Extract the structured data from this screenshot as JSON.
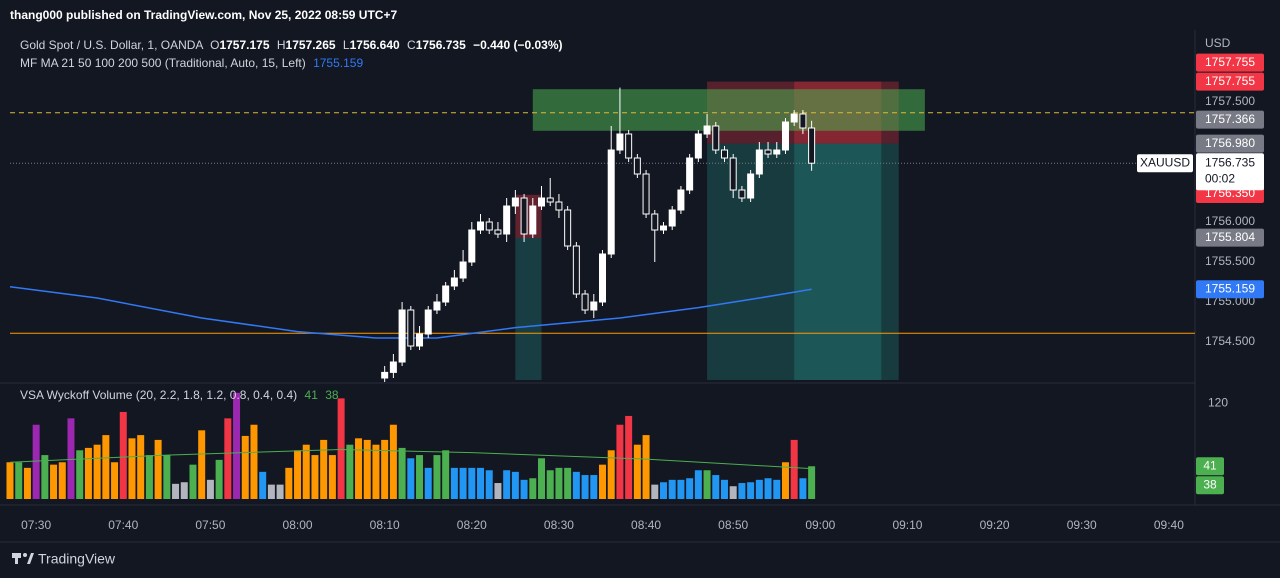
{
  "header": {
    "title": "thang000 published on TradingView.com, Nov 25, 2022 08:59 UTC+7"
  },
  "footer": {
    "brand": "TradingView"
  },
  "chart_data": [
    {
      "type": "candlestick",
      "title": "Gold Spot / U.S. Dollar, 1, OANDA",
      "legend": {
        "o_label": "O",
        "o": "1757.175",
        "h_label": "H",
        "h": "1757.265",
        "l_label": "L",
        "l": "1756.640",
        "c_label": "C",
        "c": "1756.735",
        "change": "−0.440 (−0.03%)"
      },
      "y_unit": "USD",
      "symbol_tag": "XAUUSD",
      "countdown": "00:02",
      "up_color": "#ffffff",
      "down_color": "#131722",
      "wick_color": "#ffffff",
      "ylim": [
        1754.025,
        1758.3375
      ],
      "yticks": [
        {
          "value": 1757.5,
          "label": "1757.500"
        },
        {
          "value": 1756,
          "label": "1756.000"
        },
        {
          "value": 1755.5,
          "label": "1755.500"
        },
        {
          "value": 1755,
          "label": "1755.000"
        },
        {
          "value": 1754.5,
          "label": "1754.500"
        }
      ],
      "x": [
        "08:10",
        "08:11",
        "08:12",
        "08:13",
        "08:14",
        "08:15",
        "08:16",
        "08:17",
        "08:18",
        "08:19",
        "08:20",
        "08:21",
        "08:22",
        "08:23",
        "08:24",
        "08:25",
        "08:26",
        "08:27",
        "08:28",
        "08:29",
        "08:30",
        "08:31",
        "08:32",
        "08:33",
        "08:34",
        "08:35",
        "08:36",
        "08:37",
        "08:38",
        "08:39",
        "08:40",
        "08:41",
        "08:42",
        "08:43",
        "08:44",
        "08:45",
        "08:46",
        "08:47",
        "08:48",
        "08:49",
        "08:50",
        "08:51",
        "08:52",
        "08:53",
        "08:54",
        "08:55",
        "08:56",
        "08:57",
        "08:58",
        "08:59"
      ],
      "open": [
        1754.05,
        1754.12,
        1754.25,
        1754.9,
        1754.45,
        1754.6,
        1754.9,
        1755.0,
        1755.2,
        1755.3,
        1755.5,
        1755.9,
        1756.0,
        1755.9,
        1755.85,
        1756.2,
        1756.3,
        1755.85,
        1756.2,
        1756.3,
        1756.25,
        1756.15,
        1755.7,
        1755.1,
        1754.9,
        1755.0,
        1755.6,
        1756.9,
        1757.1,
        1756.8,
        1756.6,
        1756.1,
        1755.9,
        1755.95,
        1756.15,
        1756.4,
        1756.8,
        1757.1,
        1757.2,
        1756.9,
        1756.8,
        1756.4,
        1756.3,
        1756.6,
        1756.9,
        1756.85,
        1756.9,
        1757.25,
        1757.35,
        1757.175
      ],
      "high": [
        1754.2,
        1754.35,
        1755.0,
        1754.95,
        1754.7,
        1754.95,
        1755.1,
        1755.25,
        1755.4,
        1755.65,
        1756.0,
        1756.1,
        1756.05,
        1756.0,
        1756.3,
        1756.4,
        1756.35,
        1756.3,
        1756.45,
        1756.55,
        1756.35,
        1756.2,
        1755.75,
        1755.15,
        1755.1,
        1755.65,
        1757.2,
        1757.68,
        1757.15,
        1756.85,
        1756.65,
        1756.15,
        1756.0,
        1756.2,
        1756.45,
        1756.85,
        1757.15,
        1757.35,
        1757.25,
        1756.95,
        1756.85,
        1756.45,
        1756.65,
        1757.0,
        1757.0,
        1757.0,
        1757.3,
        1757.4,
        1757.4,
        1757.265
      ],
      "low": [
        1754.0,
        1754.05,
        1754.2,
        1754.4,
        1754.4,
        1754.55,
        1754.85,
        1754.95,
        1755.15,
        1755.25,
        1755.45,
        1755.85,
        1755.85,
        1755.8,
        1755.75,
        1756.1,
        1755.75,
        1755.8,
        1756.15,
        1756.2,
        1756.05,
        1755.65,
        1755.05,
        1754.85,
        1754.8,
        1754.95,
        1755.55,
        1756.85,
        1756.75,
        1756.55,
        1756.05,
        1755.5,
        1755.85,
        1755.9,
        1756.1,
        1756.35,
        1756.75,
        1757.05,
        1756.85,
        1756.75,
        1756.3,
        1756.25,
        1756.25,
        1756.55,
        1756.8,
        1756.8,
        1756.85,
        1757.2,
        1757.1,
        1756.64
      ],
      "close": [
        1754.12,
        1754.25,
        1754.9,
        1754.45,
        1754.6,
        1754.9,
        1755.0,
        1755.2,
        1755.3,
        1755.5,
        1755.9,
        1756.0,
        1755.9,
        1755.85,
        1756.2,
        1756.3,
        1755.85,
        1756.2,
        1756.3,
        1756.25,
        1756.15,
        1755.7,
        1755.1,
        1754.9,
        1755.0,
        1755.6,
        1756.9,
        1757.1,
        1756.8,
        1756.6,
        1756.1,
        1755.9,
        1755.95,
        1756.15,
        1756.4,
        1756.8,
        1757.1,
        1757.2,
        1756.9,
        1756.8,
        1756.4,
        1756.3,
        1756.6,
        1756.9,
        1756.85,
        1756.9,
        1757.25,
        1757.35,
        1757.175,
        1756.735
      ],
      "ma": {
        "name": "MF MA 21 50 100 200 500 (Traditional, Auto, 15, Left)",
        "color": "#3179f5",
        "x": [
          "07:27",
          "07:37",
          "07:49",
          "08:00",
          "08:09",
          "08:16",
          "08:25",
          "08:37",
          "08:46",
          "08:53",
          "08:59"
        ],
        "values": [
          1755.19,
          1755.05,
          1754.8,
          1754.63,
          1754.55,
          1754.55,
          1754.68,
          1754.8,
          1754.93,
          1755.05,
          1755.159
        ]
      },
      "hlines": [
        {
          "value": 1757.366,
          "color": "#e0b83a",
          "style": "dashed"
        },
        {
          "value": 1756.735,
          "color": "#787b86",
          "style": "dotted"
        },
        {
          "value": 1754.61,
          "color": "#ff9800",
          "style": "solid"
        }
      ],
      "price_labels": [
        {
          "value": 1757.755,
          "label": "1757.755",
          "color": "#f23645"
        },
        {
          "value": 1757.755,
          "label": "1757.755",
          "color": "#f23645"
        },
        {
          "value": 1757.366,
          "label": "1757.366",
          "color": "#787b86"
        },
        {
          "value": 1756.98,
          "label": "1756.980",
          "color": "#787b86"
        },
        {
          "value": 1756.35,
          "label": "1756.350",
          "color": "#f23645"
        },
        {
          "value": 1755.804,
          "label": "1755.804",
          "color": "#787b86"
        }
      ],
      "shapes": [
        {
          "x1": "08:25",
          "x2": "08:28",
          "top": 1756.34,
          "bottom": 1755.8,
          "color": "rgba(242,54,69,0.35)"
        },
        {
          "x1": "08:25",
          "x2": "08:28",
          "top": 1755.8,
          "bottom": 1754.025,
          "color": "rgba(38,166,154,0.28)"
        },
        {
          "x1": "08:47",
          "x2": "09:09",
          "top": 1757.755,
          "bottom": 1756.98,
          "color": "rgba(242,54,69,0.3)"
        },
        {
          "x1": "08:47",
          "x2": "09:09",
          "top": 1756.98,
          "bottom": 1754.025,
          "color": "rgba(38,166,154,0.25)"
        },
        {
          "x1": "08:57",
          "x2": "09:07",
          "top": 1757.755,
          "bottom": 1756.98,
          "color": "rgba(242,54,69,0.3)"
        },
        {
          "x1": "08:57",
          "x2": "09:07",
          "top": 1756.98,
          "bottom": 1754.025,
          "color": "rgba(38,166,154,0.25)"
        },
        {
          "x1": "08:27",
          "x2": "09:12",
          "top": 1757.66,
          "bottom": 1757.14,
          "color": "rgba(76,175,80,0.55)"
        }
      ]
    },
    {
      "type": "bar",
      "title": "VSA Wyckoff Volume (20, 2.2, 1.8, 1.2, 0.8, 0.4, 0.4)",
      "xlim": [
        "07:27",
        "09:43"
      ],
      "xticks": [
        "07:30",
        "07:40",
        "07:50",
        "08:00",
        "08:10",
        "08:20",
        "08:30",
        "08:40",
        "08:50",
        "09:00",
        "09:10",
        "09:20",
        "09:30",
        "09:40"
      ],
      "ylim": [
        0,
        141.5
      ],
      "yticks": [
        120
      ],
      "label_color": "#4caf50",
      "x": [
        "07:27",
        "07:28",
        "07:29",
        "07:30",
        "07:31",
        "07:32",
        "07:33",
        "07:34",
        "07:35",
        "07:36",
        "07:37",
        "07:38",
        "07:39",
        "07:40",
        "07:41",
        "07:42",
        "07:43",
        "07:44",
        "07:45",
        "07:46",
        "07:47",
        "07:48",
        "07:49",
        "07:50",
        "07:51",
        "07:52",
        "07:53",
        "07:54",
        "07:55",
        "07:56",
        "07:57",
        "07:58",
        "07:59",
        "08:00",
        "08:01",
        "08:02",
        "08:03",
        "08:04",
        "08:05",
        "08:06",
        "08:07",
        "08:08",
        "08:09",
        "08:10",
        "08:11",
        "08:12",
        "08:13",
        "08:14",
        "08:15",
        "08:16",
        "08:17",
        "08:18",
        "08:19",
        "08:20",
        "08:21",
        "08:22",
        "08:23",
        "08:24",
        "08:25",
        "08:26",
        "08:27",
        "08:28",
        "08:29",
        "08:30",
        "08:31",
        "08:32",
        "08:33",
        "08:34",
        "08:35",
        "08:36",
        "08:37",
        "08:38",
        "08:39",
        "08:40",
        "08:41",
        "08:42",
        "08:43",
        "08:44",
        "08:45",
        "08:46",
        "08:47",
        "08:48",
        "08:49",
        "08:50",
        "08:51",
        "08:52",
        "08:53",
        "08:54",
        "08:55",
        "08:56",
        "08:57",
        "08:58",
        "08:59"
      ],
      "values": [
        46,
        46,
        39,
        93,
        55,
        43,
        46,
        101,
        61,
        64,
        68,
        80,
        46,
        109,
        76,
        80,
        55,
        74,
        55,
        19,
        21,
        43,
        86,
        24,
        49,
        101,
        133,
        79,
        93,
        34,
        18,
        18,
        39,
        61,
        68,
        55,
        74,
        55,
        126,
        68,
        76,
        74,
        68,
        74,
        93,
        64,
        51,
        55,
        39,
        55,
        61,
        39,
        39,
        39,
        39,
        36,
        20,
        36,
        34,
        24,
        26,
        51,
        36,
        39,
        39,
        34,
        30,
        30,
        43,
        61,
        93,
        104,
        68,
        80,
        18,
        21,
        24,
        24,
        26,
        36,
        36,
        30,
        24,
        16,
        20,
        21,
        24,
        26,
        24,
        46,
        74,
        26,
        41
      ],
      "colors": [
        "#ff9800",
        "#4caf50",
        "#ff9800",
        "#9c27b0",
        "#4caf50",
        "#ff9800",
        "#ff9800",
        "#9c27b0",
        "#4caf50",
        "#ff9800",
        "#ff9800",
        "#ff9800",
        "#ff9800",
        "#f23645",
        "#ff9800",
        "#ff9800",
        "#4caf50",
        "#ff9800",
        "#4caf50",
        "#b2b5be",
        "#b2b5be",
        "#4caf50",
        "#ff9800",
        "#b2b5be",
        "#4caf50",
        "#f23645",
        "#9c27b0",
        "#ff9800",
        "#ff9800",
        "#2196f3",
        "#b2b5be",
        "#b2b5be",
        "#ff9800",
        "#ff9800",
        "#ff9800",
        "#ff9800",
        "#ff9800",
        "#ff9800",
        "#f23645",
        "#4caf50",
        "#ff9800",
        "#ff9800",
        "#ff9800",
        "#ff9800",
        "#ff9800",
        "#4caf50",
        "#2196f3",
        "#4caf50",
        "#2196f3",
        "#4caf50",
        "#4caf50",
        "#2196f3",
        "#2196f3",
        "#2196f3",
        "#2196f3",
        "#2196f3",
        "#b2b5be",
        "#2196f3",
        "#2196f3",
        "#2196f3",
        "#4caf50",
        "#4caf50",
        "#4caf50",
        "#4caf50",
        "#4caf50",
        "#2196f3",
        "#2196f3",
        "#2196f3",
        "#ff9800",
        "#ff9800",
        "#f23645",
        "#f23645",
        "#ff9800",
        "#ff9800",
        "#b2b5be",
        "#2196f3",
        "#2196f3",
        "#2196f3",
        "#2196f3",
        "#2196f3",
        "#4caf50",
        "#2196f3",
        "#2196f3",
        "#b2b5be",
        "#2196f3",
        "#2196f3",
        "#2196f3",
        "#2196f3",
        "#2196f3",
        "#ff9800",
        "#f23645",
        "#2196f3",
        "#4caf50"
      ],
      "ma": {
        "color": "#4caf50",
        "x": [
          "07:27",
          "07:45",
          "08:05",
          "08:20",
          "08:40",
          "08:59"
        ],
        "values": [
          46,
          55,
          62,
          58,
          50,
          38
        ]
      }
    }
  ]
}
